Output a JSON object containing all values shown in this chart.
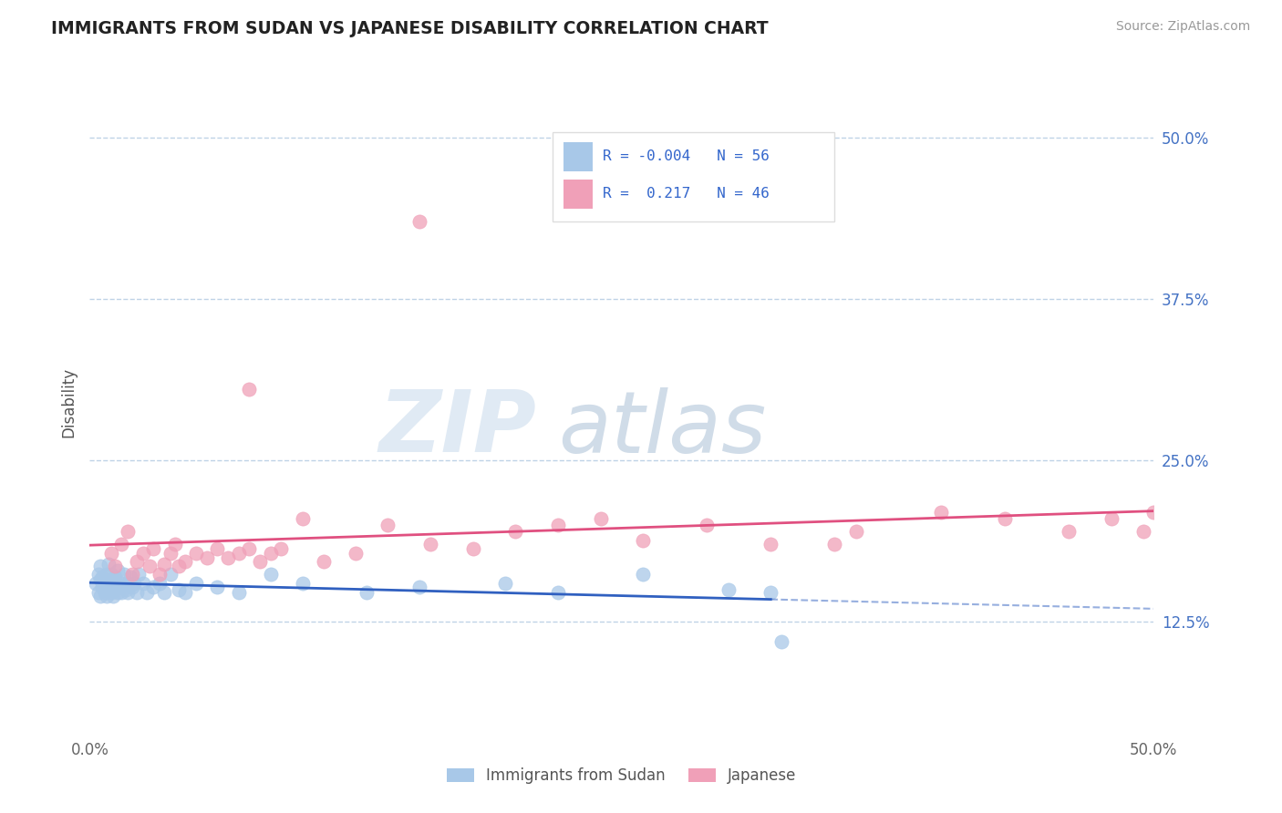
{
  "title": "IMMIGRANTS FROM SUDAN VS JAPANESE DISABILITY CORRELATION CHART",
  "source": "Source: ZipAtlas.com",
  "ylabel": "Disability",
  "xlim": [
    0.0,
    0.5
  ],
  "ylim": [
    0.04,
    0.55
  ],
  "ytick_positions": [
    0.125,
    0.25,
    0.375,
    0.5
  ],
  "ytick_labels": [
    "12.5%",
    "25.0%",
    "37.5%",
    "50.0%"
  ],
  "xtick_positions": [
    0.0,
    0.5
  ],
  "xtick_labels": [
    "0.0%",
    "50.0%"
  ],
  "color_sudan": "#A8C8E8",
  "color_japan": "#F0A0B8",
  "color_line_sudan": "#3060C0",
  "color_line_japan": "#E05080",
  "color_grid": "#B0C8E0",
  "sudan_x": [
    0.003,
    0.004,
    0.004,
    0.005,
    0.005,
    0.005,
    0.006,
    0.006,
    0.007,
    0.007,
    0.008,
    0.008,
    0.009,
    0.009,
    0.01,
    0.01,
    0.01,
    0.011,
    0.011,
    0.012,
    0.012,
    0.013,
    0.013,
    0.014,
    0.015,
    0.015,
    0.016,
    0.017,
    0.018,
    0.018,
    0.019,
    0.02,
    0.021,
    0.022,
    0.023,
    0.025,
    0.027,
    0.03,
    0.033,
    0.035,
    0.038,
    0.042,
    0.045,
    0.05,
    0.06,
    0.07,
    0.085,
    0.1,
    0.13,
    0.155,
    0.195,
    0.22,
    0.26,
    0.3,
    0.32,
    0.325
  ],
  "sudan_y": [
    0.155,
    0.148,
    0.162,
    0.158,
    0.145,
    0.168,
    0.152,
    0.16,
    0.155,
    0.148,
    0.162,
    0.145,
    0.158,
    0.17,
    0.148,
    0.155,
    0.162,
    0.15,
    0.145,
    0.16,
    0.155,
    0.148,
    0.165,
    0.152,
    0.155,
    0.148,
    0.162,
    0.15,
    0.155,
    0.148,
    0.16,
    0.152,
    0.155,
    0.148,
    0.162,
    0.155,
    0.148,
    0.152,
    0.155,
    0.148,
    0.162,
    0.15,
    0.148,
    0.155,
    0.152,
    0.148,
    0.162,
    0.155,
    0.148,
    0.152,
    0.155,
    0.148,
    0.162,
    0.15,
    0.148,
    0.11
  ],
  "japan_x": [
    0.01,
    0.012,
    0.015,
    0.018,
    0.02,
    0.022,
    0.025,
    0.028,
    0.03,
    0.033,
    0.035,
    0.038,
    0.04,
    0.042,
    0.045,
    0.05,
    0.055,
    0.06,
    0.065,
    0.07,
    0.075,
    0.08,
    0.085,
    0.09,
    0.1,
    0.11,
    0.125,
    0.14,
    0.16,
    0.18,
    0.2,
    0.22,
    0.24,
    0.26,
    0.29,
    0.32,
    0.36,
    0.4,
    0.43,
    0.46,
    0.48,
    0.495,
    0.5,
    0.35,
    0.075,
    0.155
  ],
  "japan_y": [
    0.178,
    0.168,
    0.185,
    0.195,
    0.162,
    0.172,
    0.178,
    0.168,
    0.182,
    0.162,
    0.17,
    0.178,
    0.185,
    0.168,
    0.172,
    0.178,
    0.175,
    0.182,
    0.175,
    0.178,
    0.182,
    0.172,
    0.178,
    0.182,
    0.205,
    0.172,
    0.178,
    0.2,
    0.185,
    0.182,
    0.195,
    0.2,
    0.205,
    0.188,
    0.2,
    0.185,
    0.195,
    0.21,
    0.205,
    0.195,
    0.205,
    0.195,
    0.21,
    0.185,
    0.305,
    0.435
  ],
  "watermark_zip": "ZIP",
  "watermark_atlas": "atlas",
  "legend_entries": [
    {
      "label": "R = -0.004",
      "n": "N = 56",
      "color": "#A8C8E8"
    },
    {
      "label": "R =  0.217",
      "n": "N = 46",
      "color": "#F0A0B8"
    }
  ]
}
